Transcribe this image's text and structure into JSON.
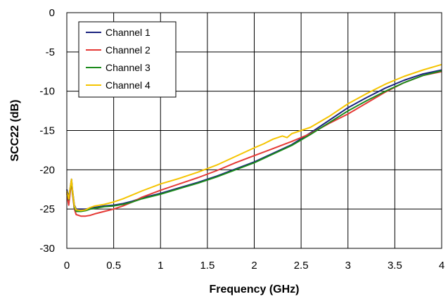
{
  "chart_data": {
    "type": "line",
    "title": "",
    "xlabel": "Frequency (GHz)",
    "ylabel": "SCC22 (dB)",
    "xlim": [
      0,
      4
    ],
    "ylim": [
      -30,
      0
    ],
    "xticks": [
      0,
      0.5,
      1,
      1.5,
      2,
      2.5,
      3,
      3.5,
      4
    ],
    "yticks": [
      0,
      -5,
      -10,
      -15,
      -20,
      -25,
      -30
    ],
    "xtick_labels": [
      "0",
      "0.5",
      "1",
      "1.5",
      "2",
      "2.5",
      "3",
      "3.5",
      "4"
    ],
    "ytick_labels": [
      "0",
      "-5",
      "-10",
      "-15",
      "-20",
      "-25",
      "-30"
    ],
    "grid": true,
    "legend_position": "top-left",
    "series": [
      {
        "name": "Channel 1",
        "color": "#1a237e",
        "x": [
          0.0,
          0.02,
          0.04,
          0.05,
          0.06,
          0.08,
          0.1,
          0.15,
          0.2,
          0.25,
          0.3,
          0.4,
          0.5,
          0.6,
          0.7,
          0.8,
          1.0,
          1.2,
          1.4,
          1.6,
          1.8,
          2.0,
          2.2,
          2.4,
          2.6,
          2.8,
          3.0,
          3.2,
          3.4,
          3.6,
          3.8,
          4.0
        ],
        "y": [
          -22.5,
          -23.5,
          -22.0,
          -21.2,
          -22.5,
          -24.5,
          -25.0,
          -25.0,
          -25.0,
          -24.9,
          -24.8,
          -24.6,
          -24.5,
          -24.3,
          -24.0,
          -23.6,
          -23.0,
          -22.3,
          -21.6,
          -20.8,
          -19.9,
          -19.0,
          -17.9,
          -16.8,
          -15.3,
          -13.7,
          -12.1,
          -10.8,
          -9.6,
          -8.6,
          -7.8,
          -7.3
        ]
      },
      {
        "name": "Channel 2",
        "color": "#e53935",
        "x": [
          0.0,
          0.02,
          0.04,
          0.05,
          0.06,
          0.08,
          0.1,
          0.15,
          0.2,
          0.25,
          0.3,
          0.4,
          0.5,
          0.6,
          0.7,
          0.8,
          1.0,
          1.2,
          1.4,
          1.6,
          1.8,
          2.0,
          2.2,
          2.4,
          2.6,
          2.8,
          3.0,
          3.2,
          3.4,
          3.6,
          3.8,
          4.0
        ],
        "y": [
          -23.0,
          -24.5,
          -22.5,
          -21.5,
          -23.0,
          -25.0,
          -25.7,
          -25.9,
          -25.9,
          -25.8,
          -25.6,
          -25.3,
          -25.0,
          -24.6,
          -24.1,
          -23.5,
          -22.6,
          -21.8,
          -21.0,
          -20.1,
          -19.1,
          -18.2,
          -17.3,
          -16.4,
          -15.4,
          -14.1,
          -12.9,
          -11.5,
          -10.1,
          -8.9,
          -8.0,
          -7.5
        ]
      },
      {
        "name": "Channel 3",
        "color": "#1b8a1b",
        "x": [
          0.0,
          0.02,
          0.04,
          0.05,
          0.06,
          0.08,
          0.1,
          0.15,
          0.2,
          0.25,
          0.3,
          0.4,
          0.5,
          0.6,
          0.7,
          0.8,
          1.0,
          1.2,
          1.4,
          1.6,
          1.8,
          2.0,
          2.2,
          2.4,
          2.6,
          2.8,
          3.0,
          3.2,
          3.4,
          3.6,
          3.8,
          4.0
        ],
        "y": [
          -22.8,
          -23.8,
          -22.2,
          -21.3,
          -22.8,
          -24.8,
          -25.3,
          -25.3,
          -25.2,
          -25.0,
          -24.9,
          -24.7,
          -24.6,
          -24.4,
          -24.1,
          -23.7,
          -23.1,
          -22.4,
          -21.7,
          -20.9,
          -20.0,
          -19.1,
          -18.0,
          -16.9,
          -15.5,
          -14.0,
          -12.5,
          -11.2,
          -10.0,
          -8.9,
          -8.0,
          -7.4
        ]
      },
      {
        "name": "Channel 4",
        "color": "#f5c400",
        "x": [
          0.0,
          0.02,
          0.04,
          0.05,
          0.06,
          0.08,
          0.1,
          0.15,
          0.2,
          0.25,
          0.3,
          0.4,
          0.5,
          0.6,
          0.7,
          0.8,
          1.0,
          1.2,
          1.4,
          1.6,
          1.8,
          2.0,
          2.1,
          2.2,
          2.3,
          2.35,
          2.4,
          2.5,
          2.6,
          2.8,
          3.0,
          3.2,
          3.4,
          3.6,
          3.8,
          4.0
        ],
        "y": [
          -22.7,
          -23.7,
          -22.0,
          -21.2,
          -22.6,
          -24.6,
          -25.1,
          -25.2,
          -25.1,
          -24.8,
          -24.6,
          -24.4,
          -24.1,
          -23.7,
          -23.2,
          -22.7,
          -21.8,
          -21.1,
          -20.3,
          -19.4,
          -18.3,
          -17.2,
          -16.7,
          -16.1,
          -15.7,
          -15.9,
          -15.4,
          -15.0,
          -14.6,
          -13.2,
          -11.6,
          -10.3,
          -9.1,
          -8.1,
          -7.3,
          -6.6
        ]
      }
    ]
  }
}
